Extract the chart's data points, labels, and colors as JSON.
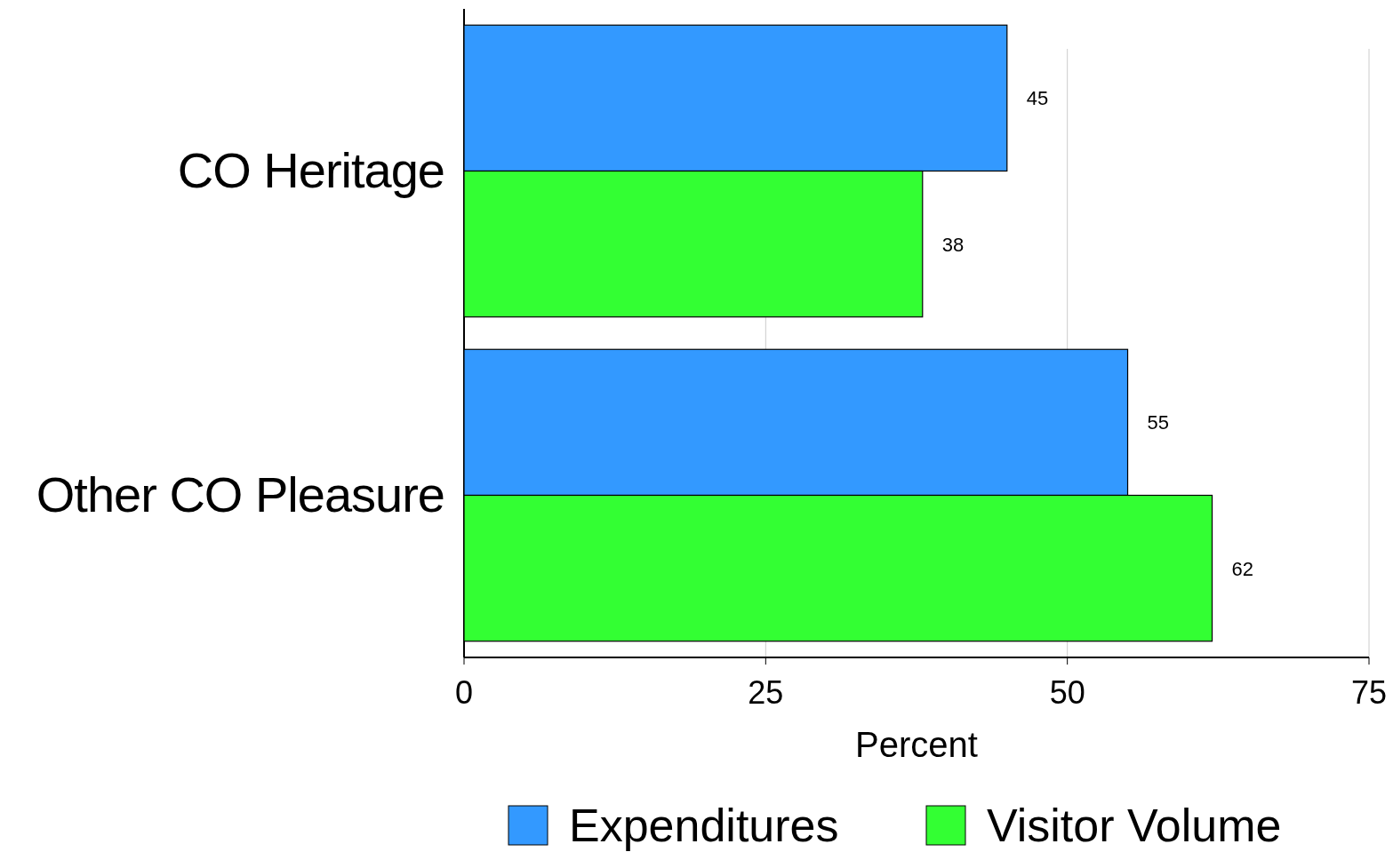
{
  "chart_data": {
    "type": "bar",
    "orientation": "horizontal",
    "categories": [
      "CO Heritage",
      "Other CO Pleasure"
    ],
    "series": [
      {
        "name": "Expenditures",
        "color": "#3399ff",
        "values": [
          45,
          55
        ]
      },
      {
        "name": "Visitor Volume",
        "color": "#33ff33",
        "values": [
          38,
          62
        ]
      }
    ],
    "xlabel": "Percent",
    "xlim": [
      0,
      75
    ],
    "xticks": [
      0,
      25,
      50,
      75
    ],
    "grid": "x",
    "data_labels": true,
    "legend": "bottom"
  }
}
